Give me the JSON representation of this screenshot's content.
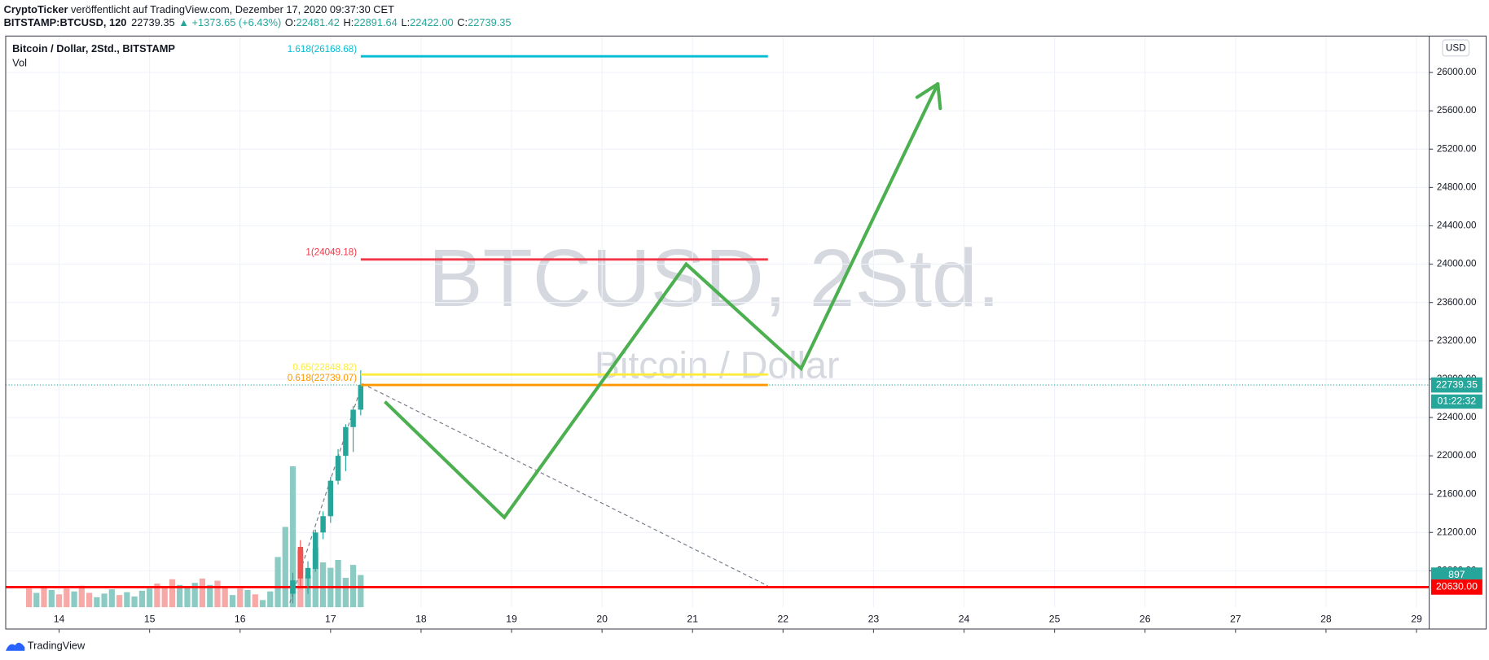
{
  "header": {
    "author": "CryptoTicker",
    "published": "veröffentlicht auf TradingView.com, Dezember 17, 2020 09:37:30 CET",
    "symbol": "BITSTAMP:BTCUSD, 120",
    "last": "22739.35",
    "change": "▲ +1373.65 (+6.43%)",
    "ohlc": [
      {
        "key": "O:",
        "value": "22481.42"
      },
      {
        "key": "H:",
        "value": "22891.64"
      },
      {
        "key": "L:",
        "value": "22422.00"
      },
      {
        "key": "C:",
        "value": "22739.35"
      }
    ]
  },
  "chart_data": {
    "type": "candlestick",
    "legend": "Bitcoin / Dollar, 2Std., BITSTAMP",
    "volume_legend": "Vol",
    "watermark": "BTCUSD, 2Std.",
    "watermark_sub": "Bitcoin / Dollar",
    "currency": "USD",
    "x": [
      16.583,
      16.667,
      16.75,
      16.833,
      16.917,
      17,
      17.083,
      17.167,
      17.25,
      17.333
    ],
    "open": [
      20560,
      21050,
      20720,
      20820,
      21200,
      21370,
      21740,
      22000,
      22300,
      22481.42
    ],
    "high": [
      20780,
      21120,
      20900,
      21230,
      21420,
      21780,
      22070,
      22330,
      22520,
      22891.64
    ],
    "low": [
      20460,
      20640,
      20560,
      20790,
      21130,
      21300,
      21700,
      21840,
      22040,
      22422
    ],
    "close": [
      20700,
      20720,
      20830,
      21200,
      21370,
      21740,
      22000,
      22300,
      22481.42,
      22739.35
    ],
    "up_color": "#26a69a",
    "down_color": "#ef5350",
    "volume": {
      "x": [
        13.667,
        13.75,
        13.833,
        13.917,
        14,
        14.083,
        14.167,
        14.25,
        14.333,
        14.417,
        14.5,
        14.583,
        14.667,
        14.75,
        14.833,
        14.917,
        15,
        15.083,
        15.167,
        15.25,
        15.333,
        15.417,
        15.5,
        15.583,
        15.667,
        15.75,
        15.833,
        15.917,
        16,
        16.083,
        16.167,
        16.25,
        16.333,
        16.417,
        16.5,
        16.583,
        16.667,
        16.75,
        16.833,
        16.917,
        17,
        17.083,
        17.167,
        17.25,
        17.333
      ],
      "values": [
        520,
        400,
        560,
        480,
        360,
        520,
        440,
        600,
        400,
        280,
        380,
        500,
        340,
        420,
        300,
        460,
        520,
        660,
        560,
        780,
        620,
        560,
        680,
        800,
        620,
        740,
        560,
        340,
        520,
        480,
        360,
        200,
        440,
        1400,
        2240,
        3930,
        1600,
        900,
        1650,
        1250,
        1100,
        1320,
        820,
        1180,
        897
      ],
      "colors": [
        "#f7a9a7",
        "#8bcbc3",
        "#f7a9a7",
        "#8bcbc3",
        "#f7a9a7",
        "#f7a9a7",
        "#8bcbc3",
        "#f7a9a7",
        "#f7a9a7",
        "#8bcbc3",
        "#8bcbc3",
        "#8bcbc3",
        "#f7a9a7",
        "#8bcbc3",
        "#8bcbc3",
        "#8bcbc3",
        "#8bcbc3",
        "#f7a9a7",
        "#f7a9a7",
        "#f7a9a7",
        "#8bcbc3",
        "#8bcbc3",
        "#8bcbc3",
        "#f7a9a7",
        "#8bcbc3",
        "#f7a9a7",
        "#f7a9a7",
        "#8bcbc3",
        "#f7a9a7",
        "#8bcbc3",
        "#f7a9a7",
        "#8bcbc3",
        "#8bcbc3",
        "#8bcbc3",
        "#8bcbc3",
        "#8bcbc3",
        "#f7a9a7",
        "#8bcbc3",
        "#8bcbc3",
        "#8bcbc3",
        "#8bcbc3",
        "#8bcbc3",
        "#8bcbc3",
        "#8bcbc3",
        "#8bcbc3"
      ],
      "y2lim": [
        0,
        5000
      ],
      "label_color": "#26a69a"
    },
    "xlim": [
      13.41,
      29.14
    ],
    "xticks": [
      14,
      15,
      16,
      17,
      18,
      19,
      20,
      21,
      22,
      23,
      24,
      25,
      26,
      27,
      28,
      29
    ],
    "ylim": [
      20420,
      26380
    ],
    "yticks": [
      {
        "value": 20800,
        "label": "20800.00"
      },
      {
        "value": 21200,
        "label": "21200.00"
      },
      {
        "value": 21600,
        "label": "21600.00"
      },
      {
        "value": 22000,
        "label": "22000.00"
      },
      {
        "value": 22400,
        "label": "22400.00"
      },
      {
        "value": 22800,
        "label": "22800.00"
      },
      {
        "value": 23200,
        "label": "23200.00"
      },
      {
        "value": 23600,
        "label": "23600.00"
      },
      {
        "value": 24000,
        "label": "24000.00"
      },
      {
        "value": 24400,
        "label": "24400.00"
      },
      {
        "value": 24800,
        "label": "24800.00"
      },
      {
        "value": 25200,
        "label": "25200.00"
      },
      {
        "value": 25600,
        "label": "25600.00"
      },
      {
        "value": 26000,
        "label": "26000.00"
      }
    ],
    "grid": true,
    "fib_x": [
      17.333,
      21.833
    ],
    "fib_levels": [
      {
        "label": "1.618(26168.68)",
        "value": 26168.68,
        "color": "#00bcd4"
      },
      {
        "label": "1(24049.18)",
        "value": 24049.18,
        "color": "#f23645"
      },
      {
        "label": "0.65(22848.82)",
        "value": 22848.82,
        "color": "#ffeb3b"
      },
      {
        "label": "0.618(22739.07)",
        "value": 22739.07,
        "color": "#ff9800"
      }
    ],
    "support": {
      "value": 20630,
      "label": "20630.00",
      "color": "#ff0000"
    },
    "last_price": {
      "value": 22739.35,
      "label": "22739.35",
      "countdown": "01:22:32",
      "color": "#26a69a"
    },
    "trend_lines": [
      {
        "x": [
          17.35,
          21.83
        ],
        "y": [
          22753,
          20644
        ]
      },
      {
        "x": [
          16.55,
          17.35
        ],
        "y": [
          20466,
          22753
        ]
      }
    ],
    "projection": {
      "x": [
        17.6,
        18.92,
        20.93,
        22.2,
        23.71
      ],
      "y": [
        22565,
        21357,
        24000,
        22911,
        25881
      ],
      "color": "#4caf50"
    }
  },
  "footer": {
    "brand": "TradingView"
  }
}
